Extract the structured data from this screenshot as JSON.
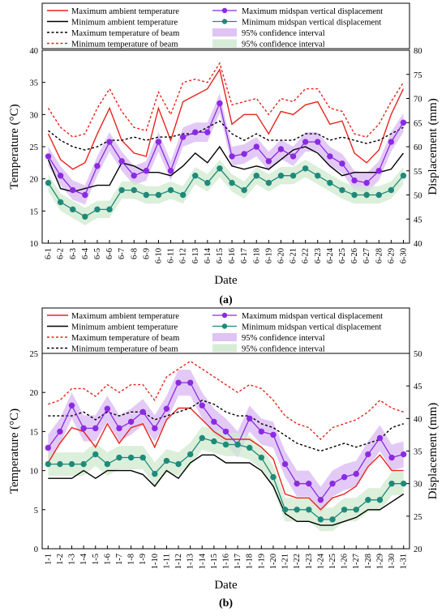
{
  "chart_data": [
    {
      "type": "line",
      "panel_label": "(a)",
      "xlabel": "Date",
      "ylabel": "Temperature (°C)",
      "y2label": "Displacement (mm)",
      "ylim": [
        10,
        40
      ],
      "y2lim": [
        40,
        80
      ],
      "yticks": [
        10,
        15,
        20,
        25,
        30,
        35,
        40
      ],
      "y2ticks": [
        40,
        45,
        50,
        55,
        60,
        65,
        70,
        75,
        80
      ],
      "categories": [
        "6-1",
        "6-2",
        "6-3",
        "6-4",
        "6-5",
        "6-6",
        "6-7",
        "6-8",
        "6-9",
        "6-10",
        "6-11",
        "6-12",
        "6-13",
        "6-14",
        "6-15",
        "6-16",
        "6-17",
        "6-18",
        "6-19",
        "6-20",
        "6-21",
        "6-22",
        "6-23",
        "6-24",
        "6-25",
        "6-26",
        "6-27",
        "6-28",
        "6-29",
        "6-30"
      ],
      "legend": {
        "left": [
          "Maximum ambient temperature",
          "Minimum ambient temperature",
          "Maximum temperature of beam",
          "Minimum temperature of beam"
        ],
        "right": [
          "Maximum midspan vertical displacement",
          "Minimum midspan vertical displacement",
          "95% confidence interval",
          "95% confidence interval"
        ]
      },
      "series": [
        {
          "name": "Maximum ambient temperature",
          "axis": "left",
          "style": "solid",
          "color": "#e8241c",
          "values": [
            27,
            23,
            21.5,
            22.5,
            27,
            31,
            26,
            24,
            23.5,
            31,
            26,
            32,
            33,
            34,
            37,
            28.5,
            30,
            30,
            27,
            30.5,
            30,
            31.5,
            32,
            28.5,
            29,
            24,
            22.5,
            24.5,
            30,
            34
          ]
        },
        {
          "name": "Minimum ambient temperature",
          "axis": "left",
          "style": "solid",
          "color": "#000000",
          "values": [
            23,
            18.5,
            18,
            18.5,
            19,
            19,
            22.5,
            22,
            21,
            21,
            20.5,
            22,
            24,
            22.5,
            25,
            22,
            21.5,
            22,
            21.5,
            23,
            24.5,
            25,
            24,
            22,
            20.5,
            21,
            21,
            21,
            21.5,
            24
          ]
        },
        {
          "name": "Maximum temperature of beam",
          "axis": "left",
          "style": "dashed",
          "color": "#000000",
          "values": [
            27.5,
            26,
            25,
            24.5,
            25,
            26,
            26,
            26.5,
            26,
            26.5,
            26.5,
            27,
            27,
            28,
            29,
            27,
            26,
            27,
            26,
            26,
            26,
            27,
            27,
            26,
            26.5,
            26,
            25.5,
            26,
            27,
            28
          ]
        },
        {
          "name": "Minimum temperature of beam",
          "axis": "left",
          "style": "dashed",
          "color": "#e8241c",
          "values": [
            31,
            28,
            26.5,
            27,
            31,
            34,
            30.5,
            28,
            27.5,
            33.5,
            30,
            35,
            35.5,
            35,
            38,
            31.5,
            32,
            32.5,
            30,
            32.5,
            32,
            34,
            34,
            31,
            30.5,
            27,
            26.5,
            28.5,
            32,
            35
          ]
        },
        {
          "name": "Maximum midspan vertical displacement",
          "axis": "right",
          "style": "marker",
          "color": "#8a2be2",
          "values": [
            58,
            54,
            51,
            50,
            56,
            61,
            57,
            54,
            55,
            61,
            55,
            62,
            63,
            63,
            69,
            58,
            58.5,
            60,
            57,
            59.5,
            58,
            61,
            61,
            58,
            56.5,
            53,
            52.5,
            55,
            61,
            65
          ]
        },
        {
          "name": "Minimum midspan vertical displacement",
          "axis": "right",
          "style": "marker",
          "color": "#1f8a7a",
          "values": [
            52.5,
            48.5,
            47,
            45.5,
            47,
            47,
            51,
            51,
            50,
            50,
            51,
            50,
            54,
            52.5,
            55.5,
            52.5,
            51,
            54,
            52.5,
            54,
            54,
            55.5,
            54,
            52.5,
            51,
            50,
            50,
            50,
            51,
            54
          ]
        }
      ]
    },
    {
      "type": "line",
      "panel_label": "(b)",
      "xlabel": "Date",
      "ylabel": "Temperature (°C)",
      "y2label": "Displacement (mm)",
      "ylim": [
        0,
        25
      ],
      "y2lim": [
        20,
        50
      ],
      "yticks": [
        0,
        5,
        10,
        15,
        20,
        25
      ],
      "y2ticks": [
        20,
        25,
        30,
        35,
        40,
        45,
        50
      ],
      "categories": [
        "1-1",
        "1-2",
        "1-3",
        "1-4",
        "1-5",
        "1-6",
        "1-7",
        "1-8",
        "1-9",
        "1-10",
        "1-11",
        "1-12",
        "1-13",
        "1-14",
        "1-15",
        "1-16",
        "1-17",
        "1-18",
        "1-19",
        "1-20",
        "1-21",
        "1-22",
        "1-23",
        "1-24",
        "1-25",
        "1-26",
        "1-27",
        "1-28",
        "1-29",
        "1-30",
        "1-31"
      ],
      "legend": {
        "left": [
          "Maximum ambient temperature",
          "Minimum ambient temperature",
          "Maximum temperature of beam",
          "Minimum temperature of beam"
        ],
        "right": [
          "Maximum midspan vertical displacement",
          "Minimum midspan vertical displacement",
          "95% confidence interval",
          "95% confidence interval"
        ]
      },
      "series": [
        {
          "name": "Maximum ambient temperature",
          "axis": "left",
          "style": "solid",
          "color": "#e8241c",
          "values": [
            11,
            13.5,
            15.5,
            15,
            13,
            16,
            13.5,
            15.5,
            16,
            13,
            16.5,
            18,
            18,
            16.5,
            15,
            14,
            14,
            14,
            13,
            11.5,
            7,
            6.5,
            6.5,
            5,
            6.5,
            7,
            8,
            10.5,
            12,
            10,
            10
          ]
        },
        {
          "name": "Minimum ambient temperature",
          "axis": "left",
          "style": "solid",
          "color": "#000000",
          "values": [
            9,
            9,
            9,
            10,
            9,
            10,
            10,
            10,
            9.5,
            8,
            10,
            9,
            11,
            12,
            12,
            11,
            11,
            11,
            10,
            8,
            4.5,
            3.5,
            3.5,
            3,
            3,
            3.5,
            4,
            5,
            5,
            6,
            7
          ]
        },
        {
          "name": "Maximum temperature of beam",
          "axis": "left",
          "style": "dashed",
          "color": "#e8241c",
          "values": [
            18.5,
            19,
            20.5,
            20.5,
            19.5,
            21,
            20,
            21,
            21,
            19,
            22,
            23,
            24,
            23,
            22,
            21,
            20,
            21,
            20.5,
            19,
            17,
            16,
            15.5,
            14,
            15.5,
            16,
            16.5,
            17.5,
            19,
            18,
            17.5
          ]
        },
        {
          "name": "Minimum temperature of beam",
          "axis": "left",
          "style": "dashed",
          "color": "#000000",
          "values": [
            17,
            17,
            17,
            17.5,
            16.5,
            17.5,
            17,
            17.5,
            17.5,
            16.5,
            17,
            17.5,
            18,
            19,
            18.5,
            17.5,
            17,
            17,
            16,
            15.5,
            14.5,
            13.5,
            13,
            12.5,
            13,
            13.5,
            13,
            13.5,
            14,
            15.5,
            16
          ]
        },
        {
          "name": "Maximum midspan vertical displacement",
          "axis": "right",
          "style": "marker",
          "color": "#8a2be2",
          "values": [
            35.5,
            38,
            42,
            38.5,
            38.5,
            41.5,
            38.5,
            39.5,
            41,
            38.5,
            41.5,
            45.5,
            45.5,
            42,
            39.5,
            38,
            36,
            40,
            38,
            37.5,
            33,
            30,
            30,
            27.5,
            30,
            31,
            31.5,
            34.5,
            37,
            34,
            34.5
          ]
        },
        {
          "name": "Minimum midspan vertical displacement",
          "axis": "right",
          "style": "marker",
          "color": "#1f8a7a",
          "values": [
            33,
            33,
            33,
            33,
            34.5,
            33,
            34,
            34,
            34,
            31.5,
            33.5,
            33,
            34.5,
            37,
            36.5,
            36,
            36,
            35.5,
            34,
            31,
            26,
            26,
            26,
            24.5,
            24.5,
            26,
            26,
            27.5,
            27.5,
            30,
            30
          ]
        }
      ]
    }
  ]
}
